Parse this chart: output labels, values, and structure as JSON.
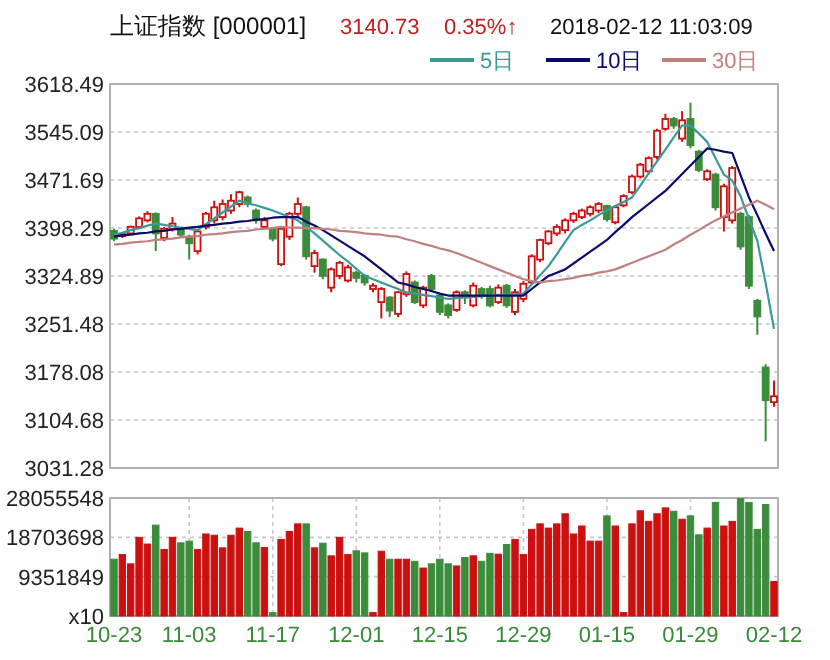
{
  "chart_data": [
    {
      "type": "candlestick",
      "title": "上证指数 [000001]",
      "annotations": [
        "3140.73",
        "0.35%↑",
        "2018-02-12 11:03:09"
      ],
      "categories": [
        null,
        null,
        null,
        null,
        null,
        null,
        null,
        null,
        null,
        null,
        null,
        null,
        null,
        null,
        null,
        null,
        null,
        null,
        null,
        null,
        null,
        null,
        null,
        null,
        null,
        null,
        null,
        null,
        null,
        null,
        null,
        null,
        null,
        null,
        null,
        null,
        null,
        null,
        null,
        null,
        null,
        null,
        null,
        null,
        null,
        null,
        null,
        null,
        null,
        null,
        null,
        null,
        null,
        null,
        null,
        null,
        null,
        null,
        null,
        null,
        null,
        null,
        null,
        null,
        null,
        null,
        null,
        null,
        null,
        null,
        null,
        null,
        null,
        null,
        null,
        null,
        null,
        null,
        null,
        null
      ],
      "ohlc": [
        [
          3394,
          3397,
          3378,
          3382
        ],
        [
          3386,
          3392,
          3383,
          3389
        ],
        [
          3390,
          3402,
          3388,
          3400
        ],
        [
          3400,
          3416,
          3398,
          3413
        ],
        [
          3410,
          3424,
          3407,
          3420
        ],
        [
          3420,
          3422,
          3363,
          3390
        ],
        [
          3383,
          3400,
          3378,
          3397
        ],
        [
          3397,
          3415,
          3393,
          3405
        ],
        [
          3397,
          3400,
          3383,
          3388
        ],
        [
          3385,
          3388,
          3350,
          3375
        ],
        [
          3363,
          3396,
          3358,
          3393
        ],
        [
          3400,
          3423,
          3396,
          3420
        ],
        [
          3410,
          3440,
          3405,
          3430
        ],
        [
          3415,
          3442,
          3410,
          3435
        ],
        [
          3425,
          3450,
          3420,
          3440
        ],
        [
          3435,
          3455,
          3430,
          3453
        ],
        [
          3445,
          3448,
          3430,
          3435
        ],
        [
          3425,
          3428,
          3405,
          3410
        ],
        [
          3400,
          3415,
          3398,
          3410
        ],
        [
          3397,
          3400,
          3378,
          3382
        ],
        [
          3343,
          3400,
          3340,
          3397
        ],
        [
          3385,
          3423,
          3380,
          3420
        ],
        [
          3420,
          3445,
          3416,
          3435
        ],
        [
          3430,
          3432,
          3350,
          3355
        ],
        [
          3340,
          3365,
          3330,
          3360
        ],
        [
          3350,
          3352,
          3320,
          3325
        ],
        [
          3307,
          3338,
          3300,
          3335
        ],
        [
          3325,
          3348,
          3320,
          3345
        ],
        [
          3318,
          3342,
          3315,
          3338
        ],
        [
          3330,
          3333,
          3315,
          3322
        ],
        [
          3325,
          3328,
          3310,
          3315
        ],
        [
          3305,
          3314,
          3300,
          3310
        ],
        [
          3285,
          3308,
          3260,
          3305
        ],
        [
          3292,
          3294,
          3262,
          3272
        ],
        [
          3267,
          3302,
          3262,
          3300
        ],
        [
          3297,
          3332,
          3293,
          3328
        ],
        [
          3315,
          3318,
          3282,
          3285
        ],
        [
          3280,
          3310,
          3276,
          3307
        ],
        [
          3325,
          3328,
          3300,
          3305
        ],
        [
          3295,
          3298,
          3265,
          3270
        ],
        [
          3280,
          3283,
          3260,
          3265
        ],
        [
          3273,
          3303,
          3270,
          3300
        ],
        [
          3300,
          3303,
          3282,
          3292
        ],
        [
          3280,
          3315,
          3277,
          3310
        ],
        [
          3305,
          3308,
          3290,
          3295
        ],
        [
          3305,
          3310,
          3277,
          3280
        ],
        [
          3285,
          3312,
          3282,
          3307
        ],
        [
          3310,
          3313,
          3276,
          3280
        ],
        [
          3270,
          3305,
          3265,
          3300
        ],
        [
          3290,
          3317,
          3285,
          3313
        ],
        [
          3315,
          3358,
          3312,
          3355
        ],
        [
          3350,
          3382,
          3346,
          3380
        ],
        [
          3375,
          3395,
          3372,
          3393
        ],
        [
          3390,
          3404,
          3386,
          3400
        ],
        [
          3395,
          3413,
          3390,
          3410
        ],
        [
          3410,
          3423,
          3406,
          3420
        ],
        [
          3415,
          3428,
          3412,
          3425
        ],
        [
          3420,
          3433,
          3416,
          3430
        ],
        [
          3425,
          3438,
          3421,
          3435
        ],
        [
          3432,
          3434,
          3408,
          3412
        ],
        [
          3407,
          3433,
          3404,
          3430
        ],
        [
          3433,
          3450,
          3430,
          3447
        ],
        [
          3453,
          3480,
          3450,
          3477
        ],
        [
          3477,
          3498,
          3474,
          3495
        ],
        [
          3485,
          3508,
          3480,
          3505
        ],
        [
          3507,
          3550,
          3503,
          3547
        ],
        [
          3550,
          3573,
          3547,
          3565
        ],
        [
          3565,
          3568,
          3550,
          3555
        ],
        [
          3535,
          3577,
          3530,
          3563
        ],
        [
          3565,
          3590,
          3520,
          3525
        ],
        [
          3515,
          3518,
          3484,
          3487
        ],
        [
          3473,
          3488,
          3470,
          3485
        ],
        [
          3480,
          3483,
          3425,
          3430
        ],
        [
          3415,
          3466,
          3393,
          3462
        ],
        [
          3410,
          3493,
          3405,
          3490
        ],
        [
          3420,
          3423,
          3365,
          3370
        ],
        [
          3415,
          3418,
          3305,
          3310
        ],
        [
          3287,
          3290,
          3235,
          3263
        ],
        [
          3185,
          3190,
          3072,
          3135
        ],
        [
          3132,
          3165,
          3125,
          3141
        ]
      ],
      "series": [
        {
          "type": "line",
          "name": "5日",
          "color": "#3a9a9a",
          "values": [
            3388,
            3391,
            3395,
            3398,
            3402,
            3405,
            3403,
            3401,
            3399,
            3397,
            3395,
            3404,
            3413,
            3422,
            3431,
            3440,
            3436,
            3433,
            3429,
            3425,
            3420,
            3415,
            3410,
            3400,
            3390,
            3379,
            3368,
            3357,
            3347,
            3336,
            3325,
            3320,
            3315,
            3310,
            3305,
            3300,
            3298,
            3296,
            3294,
            3292,
            3290,
            3291,
            3292,
            3293,
            3294,
            3295,
            3296,
            3297,
            3297,
            3298,
            3312,
            3326,
            3340,
            3358,
            3377,
            3395,
            3403,
            3410,
            3418,
            3425,
            3432,
            3438,
            3445,
            3463,
            3482,
            3500,
            3518,
            3537,
            3555,
            3555,
            3543,
            3530,
            3505,
            3480,
            3471,
            3447,
            3412,
            3379,
            3314,
            3244
          ]
        },
        {
          "type": "line",
          "name": "10日",
          "color": "#0a0a6a",
          "values": [
            3385,
            3387,
            3388,
            3390,
            3391,
            3393,
            3394,
            3396,
            3397,
            3399,
            3400,
            3402,
            3403,
            3405,
            3406,
            3408,
            3409,
            3411,
            3412,
            3414,
            3415,
            3415,
            3415,
            3408,
            3402,
            3395,
            3387,
            3379,
            3371,
            3363,
            3355,
            3345,
            3335,
            3325,
            3315,
            3312,
            3308,
            3305,
            3302,
            3298,
            3295,
            3295,
            3295,
            3295,
            3295,
            3295,
            3295,
            3295,
            3295,
            3295,
            3305,
            3315,
            3325,
            3330,
            3335,
            3344,
            3353,
            3362,
            3371,
            3380,
            3392,
            3403,
            3415,
            3425,
            3435,
            3445,
            3455,
            3468,
            3481,
            3494,
            3507,
            3520,
            3518,
            3515,
            3513,
            3479,
            3445,
            3418,
            3390,
            3363
          ]
        },
        {
          "type": "line",
          "name": "30日",
          "color": "#c08080",
          "values": [
            3373,
            3374,
            3376,
            3377,
            3378,
            3380,
            3381,
            3382,
            3384,
            3385,
            3386,
            3388,
            3389,
            3390,
            3392,
            3393,
            3394,
            3396,
            3397,
            3398,
            3400,
            3399,
            3399,
            3398,
            3398,
            3397,
            3396,
            3394,
            3393,
            3392,
            3390,
            3389,
            3388,
            3386,
            3385,
            3381,
            3378,
            3374,
            3371,
            3367,
            3364,
            3360,
            3355,
            3350,
            3345,
            3340,
            3335,
            3330,
            3325,
            3320,
            3317,
            3315,
            3317,
            3318,
            3320,
            3322,
            3325,
            3327,
            3330,
            3332,
            3335,
            3340,
            3345,
            3350,
            3355,
            3360,
            3365,
            3373,
            3380,
            3388,
            3395,
            3403,
            3410,
            3416,
            3422,
            3428,
            3434,
            3440,
            3434,
            3427
          ]
        }
      ],
      "ylim": [
        3031.28,
        3618.49
      ],
      "yticks": [
        3031.28,
        3104.68,
        3178.08,
        3251.48,
        3324.89,
        3398.29,
        3471.69,
        3545.09,
        3618.49
      ],
      "grid": true,
      "legend": "top right",
      "tick_labels": "y"
    },
    {
      "type": "bar",
      "categories": [
        "10-23",
        null,
        null,
        null,
        null,
        null,
        null,
        null,
        null,
        "11-03",
        null,
        null,
        null,
        null,
        null,
        null,
        null,
        null,
        null,
        "11-17",
        null,
        null,
        null,
        null,
        null,
        null,
        null,
        null,
        null,
        "12-01",
        null,
        null,
        null,
        null,
        null,
        null,
        null,
        null,
        null,
        "12-15",
        null,
        null,
        null,
        null,
        null,
        null,
        null,
        null,
        null,
        "12-29",
        null,
        null,
        null,
        null,
        null,
        null,
        null,
        null,
        null,
        "01-15",
        null,
        null,
        null,
        null,
        null,
        null,
        null,
        null,
        null,
        "01-29",
        null,
        null,
        null,
        null,
        null,
        null,
        null,
        null,
        null,
        "02-12"
      ],
      "values": [
        13500000,
        14600000,
        12400000,
        18700000,
        17100000,
        21600000,
        15800000,
        18700000,
        17400000,
        17800000,
        15800000,
        19500000,
        19200000,
        16200000,
        19200000,
        20900000,
        20100000,
        17400000,
        16300000,
        800000,
        18200000,
        20100000,
        21900000,
        21900000,
        16200000,
        17300000,
        14300000,
        18700000,
        14600000,
        15500000,
        15000000,
        800000,
        15400000,
        13500000,
        13500000,
        13500000,
        13000000,
        11400000,
        12400000,
        13500000,
        12400000,
        11900000,
        13900000,
        14300000,
        13000000,
        14900000,
        14700000,
        17000000,
        18200000,
        14600000,
        20600000,
        21900000,
        20900000,
        21900000,
        24300000,
        19500000,
        21400000,
        17800000,
        17800000,
        23800000,
        21400000,
        800000,
        21900000,
        25000000,
        22500000,
        24300000,
        25700000,
        24900000,
        23000000,
        23800000,
        19300000,
        20900000,
        27000000,
        21400000,
        22500000,
        27900000,
        27000000,
        20600000,
        26500000,
        8200000
      ],
      "colors": [
        "#3b8c3b",
        "#cc1010",
        "#cc1010",
        "#cc1010",
        "#cc1010",
        "#3b8c3b",
        "#cc1010",
        "#cc1010",
        "#3b8c3b",
        "#3b8c3b",
        "#cc1010",
        "#cc1010",
        "#cc1010",
        "#cc1010",
        "#cc1010",
        "#cc1010",
        "#3b8c3b",
        "#3b8c3b",
        "#cc1010",
        "#3b8c3b",
        "#cc1010",
        "#cc1010",
        "#cc1010",
        "#3b8c3b",
        "#cc1010",
        "#3b8c3b",
        "#cc1010",
        "#cc1010",
        "#cc1010",
        "#3b8c3b",
        "#3b8c3b",
        "#cc1010",
        "#cc1010",
        "#3b8c3b",
        "#cc1010",
        "#cc1010",
        "#3b8c3b",
        "#cc1010",
        "#3b8c3b",
        "#3b8c3b",
        "#3b8c3b",
        "#cc1010",
        "#3b8c3b",
        "#cc1010",
        "#3b8c3b",
        "#3b8c3b",
        "#cc1010",
        "#3b8c3b",
        "#cc1010",
        "#cc1010",
        "#cc1010",
        "#cc1010",
        "#cc1010",
        "#cc1010",
        "#cc1010",
        "#cc1010",
        "#cc1010",
        "#cc1010",
        "#cc1010",
        "#3b8c3b",
        "#cc1010",
        "#cc1010",
        "#cc1010",
        "#cc1010",
        "#cc1010",
        "#cc1010",
        "#cc1010",
        "#3b8c3b",
        "#cc1010",
        "#3b8c3b",
        "#3b8c3b",
        "#cc1010",
        "#3b8c3b",
        "#cc1010",
        "#cc1010",
        "#3b8c3b",
        "#3b8c3b",
        "#3b8c3b",
        "#3b8c3b",
        "#cc1010"
      ],
      "ylim": [
        0,
        28055548
      ],
      "yticks": [
        {
          "value": 0,
          "label": "x10"
        },
        9351849,
        18703698,
        28055548
      ],
      "grid": true
    }
  ]
}
